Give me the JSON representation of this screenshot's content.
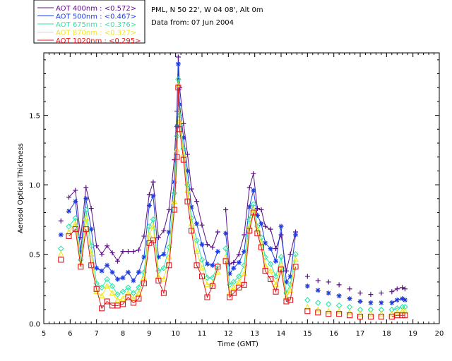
{
  "chart_data": {
    "type": "scatter",
    "title": "PML, N 50 22', W 04 08', Alt 0m",
    "subtitle": "Data from: 07 Jun 2004",
    "xlabel": "Time (GMT)",
    "ylabel": "Aerosol Optical Thickness",
    "xlim": [
      5,
      20
    ],
    "ylim": [
      0,
      1.95
    ],
    "xticks": [
      "5",
      "6",
      "7",
      "8",
      "9",
      "10",
      "11",
      "12",
      "13",
      "14",
      "15",
      "16",
      "17",
      "18",
      "19",
      "20"
    ],
    "yticks": [
      "0.0",
      "0.5",
      "1.0",
      "1.5"
    ],
    "legend_position": "top-left-outside",
    "series": [
      {
        "name": "AOT  400nm : <0.572>",
        "color": "#5a0f87",
        "marker": "plus",
        "x": [
          5.65,
          5.95,
          6.2,
          6.4,
          6.6,
          6.8,
          7.0,
          7.2,
          7.4,
          7.6,
          7.8,
          8.0,
          8.2,
          8.4,
          8.6,
          8.8,
          9.0,
          9.15,
          9.35,
          9.55,
          9.75,
          9.95,
          10.05,
          10.1,
          10.15,
          10.3,
          10.45,
          10.6,
          10.8,
          11.0,
          11.2,
          11.4,
          11.6,
          11.9,
          12.05,
          12.2,
          12.4,
          12.6,
          12.8,
          12.95,
          13.1,
          13.25,
          13.4,
          13.6,
          13.8,
          14.0,
          14.2,
          14.35,
          14.55,
          15.0,
          15.4,
          15.8,
          16.2,
          16.6,
          17.0,
          17.4,
          17.8,
          18.2,
          18.4,
          18.6,
          18.7
        ],
        "y": [
          0.74,
          0.91,
          0.96,
          0.62,
          0.98,
          0.83,
          0.56,
          0.5,
          0.56,
          0.51,
          0.45,
          0.52,
          0.52,
          0.52,
          0.53,
          0.63,
          0.93,
          1.02,
          0.62,
          0.67,
          0.82,
          1.18,
          1.53,
          1.92,
          1.7,
          1.44,
          1.22,
          0.97,
          0.88,
          0.71,
          0.57,
          0.55,
          0.66,
          0.82,
          0.43,
          0.44,
          0.5,
          0.64,
          0.98,
          1.08,
          0.83,
          0.82,
          0.7,
          0.68,
          0.54,
          0.64,
          0.38,
          0.5,
          0.66,
          0.34,
          0.31,
          0.3,
          0.28,
          0.25,
          0.22,
          0.21,
          0.22,
          0.23,
          0.25,
          0.26,
          0.25
        ]
      },
      {
        "name": "AOT  500nm : <0.467>",
        "color": "#1e3ce0",
        "marker": "asterisk",
        "x": [
          5.65,
          5.95,
          6.2,
          6.4,
          6.6,
          6.8,
          7.0,
          7.2,
          7.4,
          7.6,
          7.8,
          8.0,
          8.2,
          8.4,
          8.6,
          8.8,
          9.0,
          9.15,
          9.35,
          9.55,
          9.75,
          9.95,
          10.05,
          10.1,
          10.15,
          10.3,
          10.45,
          10.6,
          10.8,
          11.0,
          11.2,
          11.4,
          11.6,
          11.9,
          12.05,
          12.2,
          12.4,
          12.6,
          12.8,
          12.95,
          13.1,
          13.25,
          13.4,
          13.6,
          13.8,
          14.0,
          14.2,
          14.35,
          14.55,
          15.0,
          15.4,
          15.8,
          16.2,
          16.6,
          17.0,
          17.4,
          17.8,
          18.2,
          18.4,
          18.6,
          18.7
        ],
        "y": [
          0.64,
          0.81,
          0.88,
          0.52,
          0.9,
          0.68,
          0.4,
          0.38,
          0.42,
          0.37,
          0.32,
          0.33,
          0.37,
          0.31,
          0.37,
          0.48,
          0.85,
          0.92,
          0.48,
          0.5,
          0.66,
          1.02,
          1.42,
          1.87,
          1.58,
          1.34,
          1.1,
          0.84,
          0.72,
          0.57,
          0.43,
          0.42,
          0.52,
          0.65,
          0.36,
          0.4,
          0.44,
          0.52,
          0.84,
          0.96,
          0.78,
          0.72,
          0.58,
          0.54,
          0.45,
          0.7,
          0.3,
          0.34,
          0.64,
          0.27,
          0.24,
          0.22,
          0.2,
          0.18,
          0.16,
          0.15,
          0.15,
          0.15,
          0.17,
          0.18,
          0.17
        ]
      },
      {
        "name": "AOT  675nm : <0.376>",
        "color": "#2ee6a8",
        "marker": "diamond",
        "x": [
          5.65,
          5.95,
          6.2,
          6.4,
          6.6,
          6.8,
          7.0,
          7.2,
          7.4,
          7.6,
          7.8,
          8.0,
          8.2,
          8.4,
          8.6,
          8.8,
          9.0,
          9.15,
          9.35,
          9.55,
          9.75,
          9.95,
          10.05,
          10.1,
          10.15,
          10.3,
          10.45,
          10.6,
          10.8,
          11.0,
          11.2,
          11.4,
          11.6,
          11.9,
          12.05,
          12.2,
          12.4,
          12.6,
          12.8,
          12.95,
          13.1,
          13.25,
          13.4,
          13.6,
          13.8,
          14.0,
          14.2,
          14.35,
          14.55,
          15.0,
          15.4,
          15.8,
          16.2,
          16.6,
          17.0,
          17.4,
          17.8,
          18.2,
          18.4,
          18.6,
          18.7
        ],
        "y": [
          0.54,
          0.7,
          0.76,
          0.46,
          0.82,
          0.56,
          0.29,
          0.26,
          0.32,
          0.27,
          0.21,
          0.23,
          0.26,
          0.22,
          0.26,
          0.37,
          0.7,
          0.75,
          0.38,
          0.4,
          0.55,
          0.94,
          1.35,
          1.76,
          1.5,
          1.26,
          1.0,
          0.76,
          0.6,
          0.46,
          0.33,
          0.33,
          0.42,
          0.54,
          0.28,
          0.3,
          0.34,
          0.42,
          0.75,
          0.86,
          0.7,
          0.62,
          0.48,
          0.43,
          0.34,
          0.48,
          0.22,
          0.28,
          0.5,
          0.17,
          0.15,
          0.14,
          0.13,
          0.12,
          0.1,
          0.1,
          0.1,
          0.1,
          0.11,
          0.12,
          0.12
        ]
      },
      {
        "name": "AOT  870nm : <0.327>",
        "color": "#f0e61e",
        "marker": "triangle",
        "x": [
          5.65,
          5.95,
          6.2,
          6.4,
          6.6,
          6.8,
          7.0,
          7.2,
          7.4,
          7.6,
          7.8,
          8.0,
          8.2,
          8.4,
          8.6,
          8.8,
          9.0,
          9.15,
          9.35,
          9.55,
          9.75,
          9.95,
          10.05,
          10.1,
          10.15,
          10.3,
          10.45,
          10.6,
          10.8,
          11.0,
          11.2,
          11.4,
          11.6,
          11.9,
          12.05,
          12.2,
          12.4,
          12.6,
          12.8,
          12.95,
          13.1,
          13.25,
          13.4,
          13.6,
          13.8,
          14.0,
          14.2,
          14.35,
          14.55,
          15.0,
          15.4,
          15.8,
          16.2,
          16.6,
          17.0,
          17.4,
          17.8,
          18.2,
          18.4,
          18.6,
          18.7
        ],
        "y": [
          0.5,
          0.66,
          0.72,
          0.43,
          0.76,
          0.5,
          0.23,
          0.2,
          0.27,
          0.22,
          0.17,
          0.18,
          0.22,
          0.18,
          0.22,
          0.33,
          0.64,
          0.7,
          0.34,
          0.32,
          0.48,
          0.88,
          1.25,
          1.72,
          1.46,
          1.22,
          0.96,
          0.72,
          0.52,
          0.4,
          0.28,
          0.29,
          0.37,
          0.48,
          0.22,
          0.26,
          0.3,
          0.36,
          0.7,
          0.82,
          0.68,
          0.58,
          0.42,
          0.38,
          0.28,
          0.42,
          0.19,
          0.24,
          0.46,
          0.12,
          0.1,
          0.09,
          0.09,
          0.08,
          0.07,
          0.07,
          0.07,
          0.07,
          0.08,
          0.09,
          0.09
        ]
      },
      {
        "name": "AOT 1020nm : <0.295>",
        "color": "#e0161e",
        "marker": "square",
        "x": [
          5.65,
          5.95,
          6.2,
          6.4,
          6.6,
          6.8,
          7.0,
          7.2,
          7.4,
          7.6,
          7.8,
          8.0,
          8.2,
          8.4,
          8.6,
          8.8,
          9.0,
          9.15,
          9.35,
          9.55,
          9.75,
          9.95,
          10.05,
          10.1,
          10.15,
          10.3,
          10.45,
          10.6,
          10.8,
          11.0,
          11.2,
          11.4,
          11.6,
          11.9,
          12.05,
          12.2,
          12.4,
          12.6,
          12.8,
          12.95,
          13.1,
          13.25,
          13.4,
          13.6,
          13.8,
          14.0,
          14.2,
          14.35,
          14.55,
          15.0,
          15.4,
          15.8,
          16.2,
          16.6,
          17.0,
          17.4,
          17.8,
          18.2,
          18.4,
          18.6,
          18.7
        ],
        "y": [
          0.46,
          0.63,
          0.68,
          0.41,
          0.68,
          0.42,
          0.25,
          0.11,
          0.16,
          0.13,
          0.13,
          0.14,
          0.19,
          0.15,
          0.18,
          0.29,
          0.58,
          0.6,
          0.31,
          0.22,
          0.42,
          0.82,
          1.2,
          1.7,
          1.4,
          1.18,
          0.88,
          0.67,
          0.42,
          0.34,
          0.19,
          0.27,
          0.41,
          0.45,
          0.19,
          0.22,
          0.26,
          0.28,
          0.67,
          0.8,
          0.65,
          0.55,
          0.38,
          0.32,
          0.23,
          0.39,
          0.16,
          0.17,
          0.41,
          0.09,
          0.08,
          0.07,
          0.07,
          0.06,
          0.05,
          0.05,
          0.05,
          0.05,
          0.06,
          0.06,
          0.06
        ]
      }
    ]
  }
}
